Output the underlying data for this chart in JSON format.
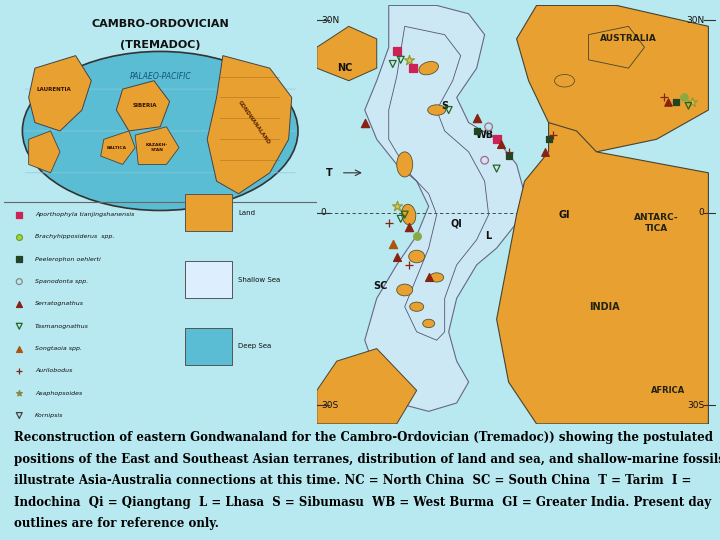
{
  "caption_lines": [
    "Reconstruction of eastern Gondwanaland for the Cambro-Ordovician (Tremadoc)) showing the postulated",
    "positions of the East and Southeast Asian terranes, distribution of land and sea, and shallow-marine fossils that",
    "illustrate Asia-Australia connections at this time. NC = North China  SC = South China  T = Tarim  I =",
    "Indochina  Qi = Qiangtang  L = Lhasa  S = Sibumasu  WB = West Burma  GI = Greater India. Present day",
    "outlines are for reference only."
  ],
  "caption_fontsize": 8.5,
  "bg_color": "#b8e8f0",
  "map_deep_sea": "#5bbdd4",
  "map_shallow": "#cce8f4",
  "land_color": "#e8a030",
  "panel_bg": "#f0cc80",
  "fig_width": 7.2,
  "fig_height": 5.4,
  "dpi": 100
}
